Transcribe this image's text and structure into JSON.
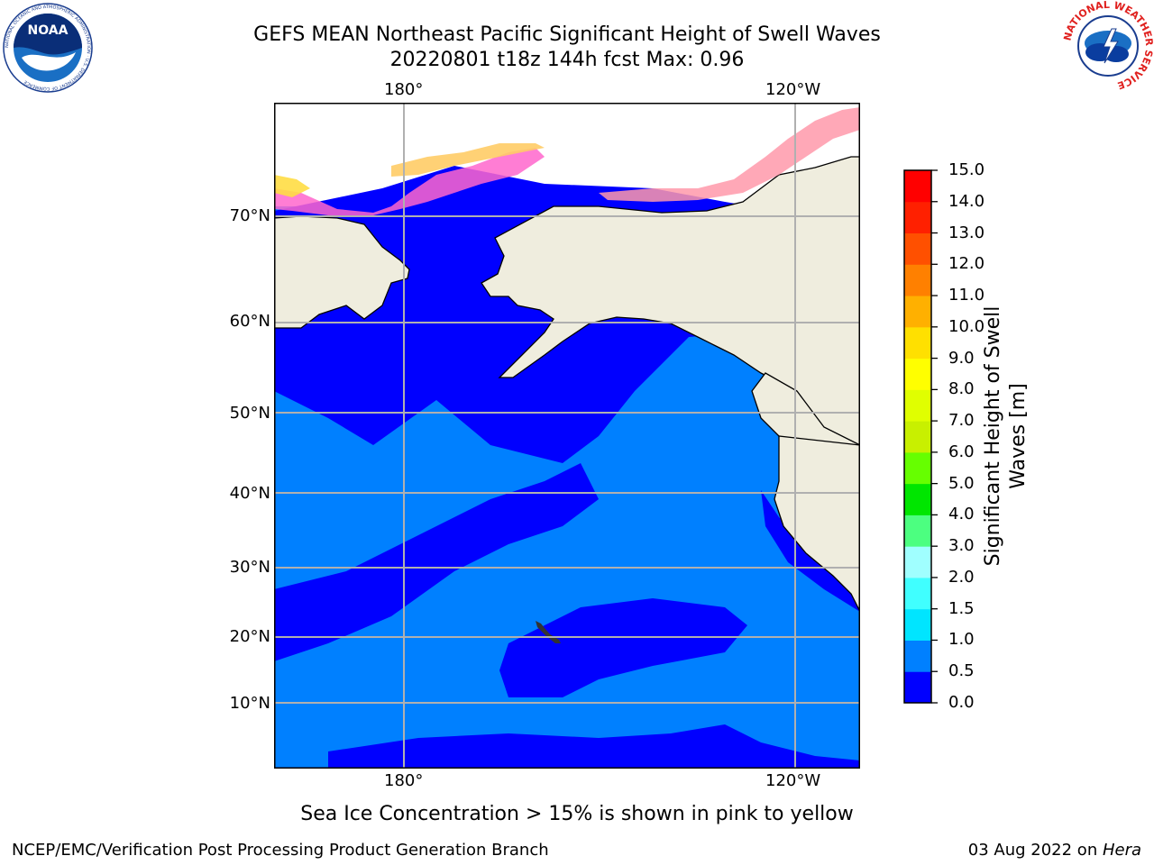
{
  "title": {
    "line1": "GEFS MEAN Northeast Pacific Significant Height of Swell Waves",
    "line2": "20220801 t18z 144h fcst   Max: 0.96"
  },
  "logos": {
    "left": {
      "name": "noaa-logo",
      "text": "NOAA",
      "ring_text": "NATIONAL OCEANIC AND ATMOSPHERIC ADMINISTRATION · U.S. DEPARTMENT OF COMMERCE"
    },
    "right": {
      "name": "nws-logo",
      "ring_text": "NATIONAL WEATHER SERVICE"
    }
  },
  "map": {
    "lon_labels_top": [
      "180°",
      "120°W"
    ],
    "lon_labels_bottom": [
      "180°",
      "120°W"
    ],
    "lat_labels": [
      "70°N",
      "60°N",
      "50°N",
      "40°N",
      "30°N",
      "20°N",
      "10°N"
    ],
    "colors": {
      "land": "#efedde",
      "sea_low": "#0000ff",
      "sea_mid": "#0080ff",
      "ice": [
        "#ff66cc",
        "#ff99aa",
        "#ffcc66",
        "#ffdd44"
      ],
      "grid": "#b0b0b0",
      "coast": "#000000"
    }
  },
  "colorbar": {
    "title_line1": "Significant Height of Swell",
    "title_line2": "Waves [m]",
    "levels": [
      "0.0",
      "0.5",
      "1.0",
      "1.5",
      "2.0",
      "3.0",
      "4.0",
      "5.0",
      "6.0",
      "7.0",
      "8.0",
      "9.0",
      "10.0",
      "11.0",
      "12.0",
      "13.0",
      "14.0",
      "15.0"
    ],
    "colors": [
      "#0000ff",
      "#0080ff",
      "#00e5ff",
      "#40ffff",
      "#a0ffff",
      "#4cff80",
      "#00e600",
      "#66ff00",
      "#c8f000",
      "#e0ff00",
      "#ffff00",
      "#ffe000",
      "#ffb000",
      "#ff8000",
      "#ff5000",
      "#ff2000",
      "#ff0000"
    ]
  },
  "caption": "Sea Ice Concentration > 15% is shown in pink to yellow",
  "footer": {
    "left": "NCEP/EMC/Verification Post Processing Product Generation Branch",
    "right_date": "03 Aug 2022 on ",
    "right_host": "Hera"
  }
}
